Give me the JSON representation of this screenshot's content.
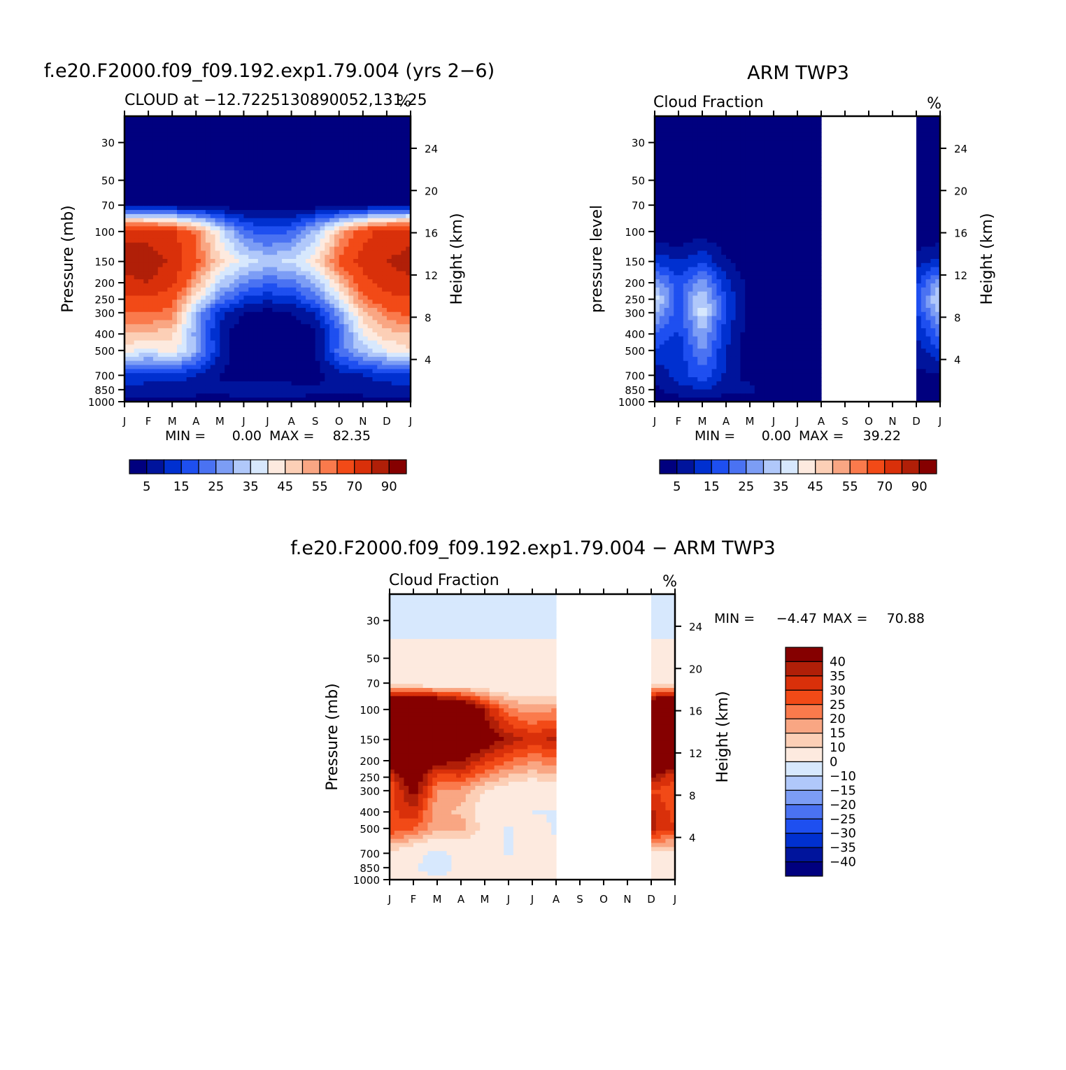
{
  "chart_data": [
    {
      "type": "heatmap",
      "id": "model",
      "title": "f.e20.F2000.f09_f09.192.exp1.79.004 (yrs 2−6)",
      "subtitle_left": "CLOUD at −12.7225130890052,131.25",
      "subtitle_right": "%",
      "ylabel": "Pressure (mb)",
      "y2label": "Height (km)",
      "months": [
        "J",
        "F",
        "M",
        "A",
        "M",
        "J",
        "J",
        "A",
        "S",
        "O",
        "N",
        "D",
        "J"
      ],
      "pressure_levels": [
        30,
        50,
        70,
        100,
        150,
        200,
        250,
        300,
        400,
        500,
        700,
        850,
        1000
      ],
      "height_ticks": [
        24,
        20,
        16,
        12,
        8,
        4
      ],
      "stats": {
        "min_label": "MIN =",
        "min": "0.00",
        "max_label": "MAX =",
        "max": "82.35"
      },
      "colorbar_ticks": [
        "5",
        "15",
        "25",
        "35",
        "45",
        "55",
        "70",
        "90"
      ],
      "grid_pressure": [
        30,
        50,
        70,
        100,
        150,
        200,
        250,
        300,
        400,
        500,
        700,
        850,
        1000
      ],
      "values": [
        [
          0,
          0,
          0,
          0,
          0,
          0,
          0,
          0,
          0,
          0,
          0,
          0,
          0
        ],
        [
          0,
          0,
          0,
          0,
          0,
          0,
          0,
          0,
          0,
          0,
          0,
          0,
          0
        ],
        [
          4,
          3,
          3,
          2,
          2,
          1,
          1,
          1,
          2,
          2,
          3,
          4,
          5
        ],
        [
          78,
          76,
          72,
          58,
          38,
          22,
          17,
          20,
          32,
          50,
          66,
          74,
          78
        ],
        [
          83,
          86,
          78,
          62,
          46,
          38,
          34,
          36,
          44,
          62,
          74,
          80,
          83
        ],
        [
          78,
          80,
          72,
          52,
          35,
          25,
          21,
          23,
          30,
          48,
          66,
          76,
          79
        ],
        [
          66,
          68,
          62,
          42,
          24,
          14,
          11,
          13,
          22,
          38,
          58,
          66,
          68
        ],
        [
          60,
          60,
          58,
          30,
          12,
          5,
          3,
          5,
          10,
          28,
          48,
          58,
          62
        ],
        [
          50,
          50,
          46,
          28,
          8,
          0,
          0,
          0,
          4,
          20,
          40,
          48,
          50
        ],
        [
          42,
          38,
          44,
          30,
          10,
          0,
          0,
          0,
          4,
          22,
          32,
          40,
          44
        ],
        [
          14,
          12,
          12,
          10,
          5,
          0,
          0,
          0,
          3,
          8,
          10,
          12,
          14
        ],
        [
          8,
          8,
          8,
          7,
          6,
          9,
          10,
          9,
          6,
          6,
          7,
          8,
          8
        ],
        [
          3,
          3,
          3,
          3,
          3,
          3,
          3,
          3,
          3,
          3,
          3,
          3,
          3
        ]
      ]
    },
    {
      "type": "heatmap",
      "id": "obs",
      "title": "ARM TWP3",
      "subtitle_left": "Cloud Fraction",
      "subtitle_right": "%",
      "ylabel": "pressure level",
      "y2label": "Height (km)",
      "months": [
        "J",
        "F",
        "M",
        "A",
        "M",
        "J",
        "J",
        "A",
        "S",
        "O",
        "N",
        "D",
        "J"
      ],
      "pressure_levels": [
        30,
        50,
        70,
        100,
        150,
        200,
        250,
        300,
        400,
        500,
        700,
        850,
        1000
      ],
      "height_ticks": [
        24,
        20,
        16,
        12,
        8,
        4
      ],
      "stats": {
        "min_label": "MIN =",
        "min": "0.00",
        "max_label": "MAX =",
        "max": "39.22"
      },
      "colorbar_ticks": [
        "5",
        "15",
        "25",
        "35",
        "45",
        "55",
        "70",
        "90"
      ],
      "missing_months": {
        "from": 8,
        "to": 10
      },
      "grid_pressure": [
        30,
        50,
        70,
        100,
        150,
        200,
        250,
        300,
        400,
        500,
        700,
        850,
        1000
      ],
      "values": [
        [
          0,
          0,
          0,
          0,
          0,
          0,
          0,
          0,
          null,
          null,
          null,
          0,
          0
        ],
        [
          0,
          0,
          0,
          0,
          0,
          0,
          0,
          0,
          null,
          null,
          null,
          0,
          0
        ],
        [
          0,
          0,
          0,
          0,
          0,
          0,
          0,
          0,
          null,
          null,
          null,
          0,
          0
        ],
        [
          0,
          0,
          3,
          0,
          0,
          0,
          0,
          0,
          null,
          null,
          null,
          0,
          0
        ],
        [
          14,
          10,
          14,
          6,
          0,
          0,
          0,
          0,
          null,
          null,
          null,
          8,
          12
        ],
        [
          30,
          16,
          28,
          12,
          3,
          0,
          0,
          0,
          null,
          null,
          null,
          14,
          28
        ],
        [
          38,
          18,
          36,
          14,
          4,
          0,
          0,
          0,
          null,
          null,
          null,
          16,
          38
        ],
        [
          32,
          16,
          38,
          14,
          3,
          0,
          0,
          0,
          null,
          null,
          null,
          14,
          32
        ],
        [
          20,
          14,
          30,
          12,
          2,
          0,
          0,
          0,
          null,
          null,
          null,
          10,
          22
        ],
        [
          14,
          12,
          26,
          10,
          2,
          0,
          0,
          0,
          null,
          null,
          null,
          8,
          14
        ],
        [
          6,
          12,
          18,
          9,
          2,
          0,
          0,
          0,
          null,
          null,
          null,
          3,
          5
        ],
        [
          4,
          8,
          10,
          7,
          7,
          0,
          0,
          0,
          null,
          null,
          null,
          3,
          4
        ],
        [
          0,
          2,
          2,
          2,
          0,
          0,
          0,
          0,
          null,
          null,
          null,
          0,
          0
        ]
      ]
    },
    {
      "type": "heatmap",
      "id": "diff",
      "title": "f.e20.F2000.f09_f09.192.exp1.79.004 − ARM TWP3",
      "subtitle_left": "Cloud Fraction",
      "subtitle_right": "%",
      "ylabel": "Pressure (mb)",
      "y2label": "Height (km)",
      "months": [
        "J",
        "F",
        "M",
        "A",
        "M",
        "J",
        "J",
        "A",
        "S",
        "O",
        "N",
        "D",
        "J"
      ],
      "pressure_levels": [
        30,
        50,
        70,
        100,
        150,
        200,
        250,
        300,
        400,
        500,
        700,
        850,
        1000
      ],
      "height_ticks": [
        24,
        20,
        16,
        12,
        8,
        4
      ],
      "stats": {
        "min_label": "MIN =",
        "min": "−4.47",
        "max_label": "MAX =",
        "max": "70.88"
      },
      "colorbar_ticks": [
        "40",
        "35",
        "30",
        "25",
        "20",
        "15",
        "10",
        "0",
        "−10",
        "−15",
        "−20",
        "−25",
        "−30",
        "−35",
        "−40"
      ],
      "missing_months": {
        "from": 8,
        "to": 10
      },
      "grid_pressure": [
        30,
        50,
        70,
        100,
        150,
        200,
        250,
        300,
        400,
        500,
        700,
        850,
        1000
      ],
      "values": [
        [
          -2,
          -2,
          -2,
          -2,
          -2,
          -2,
          -2,
          -2,
          null,
          null,
          null,
          -2,
          -2
        ],
        [
          2,
          2,
          2,
          2,
          2,
          2,
          2,
          2,
          null,
          null,
          null,
          2,
          2
        ],
        [
          4,
          3,
          3,
          2,
          2,
          1,
          1,
          1,
          null,
          null,
          null,
          4,
          5
        ],
        [
          70,
          70,
          68,
          58,
          38,
          22,
          17,
          20,
          null,
          null,
          null,
          66,
          70
        ],
        [
          70,
          72,
          64,
          56,
          46,
          38,
          34,
          36,
          null,
          null,
          null,
          70,
          70
        ],
        [
          48,
          64,
          44,
          40,
          32,
          25,
          21,
          23,
          null,
          null,
          null,
          58,
          48
        ],
        [
          30,
          50,
          26,
          30,
          20,
          14,
          11,
          13,
          null,
          null,
          null,
          40,
          30
        ],
        [
          26,
          44,
          20,
          18,
          10,
          5,
          3,
          5,
          null,
          null,
          null,
          30,
          26
        ],
        [
          28,
          34,
          16,
          14,
          6,
          2,
          0,
          -1,
          null,
          null,
          null,
          36,
          28
        ],
        [
          30,
          26,
          16,
          18,
          8,
          -1,
          4,
          -1,
          null,
          null,
          null,
          36,
          30
        ],
        [
          8,
          2,
          -2,
          2,
          4,
          -1,
          4,
          2,
          null,
          null,
          null,
          8,
          8
        ],
        [
          4,
          0,
          -2,
          1,
          1,
          10,
          10,
          10,
          null,
          null,
          null,
          4,
          4
        ],
        [
          2,
          2,
          1,
          1,
          1,
          1,
          1,
          1,
          null,
          null,
          null,
          2,
          2
        ]
      ]
    }
  ],
  "colors": {
    "abs": [
      "#00007f",
      "#00149c",
      "#0030d0",
      "#1e4ff0",
      "#4a72f2",
      "#7c9df5",
      "#b0c8fa",
      "#d7e8fd",
      "#fdeadf",
      "#fccfb6",
      "#f9a683",
      "#fa7a4c",
      "#f24a17",
      "#d9300a",
      "#b01f08",
      "#850000"
    ],
    "diff": [
      "#00007f",
      "#00149c",
      "#0030d0",
      "#1e4ff0",
      "#4a72f2",
      "#7c9df5",
      "#b0c8fa",
      "#d7e8fd",
      "#fdeadf",
      "#fccfb6",
      "#f9a683",
      "#fa7a4c",
      "#f24a17",
      "#d9300a",
      "#b01f08",
      "#850000"
    ]
  }
}
